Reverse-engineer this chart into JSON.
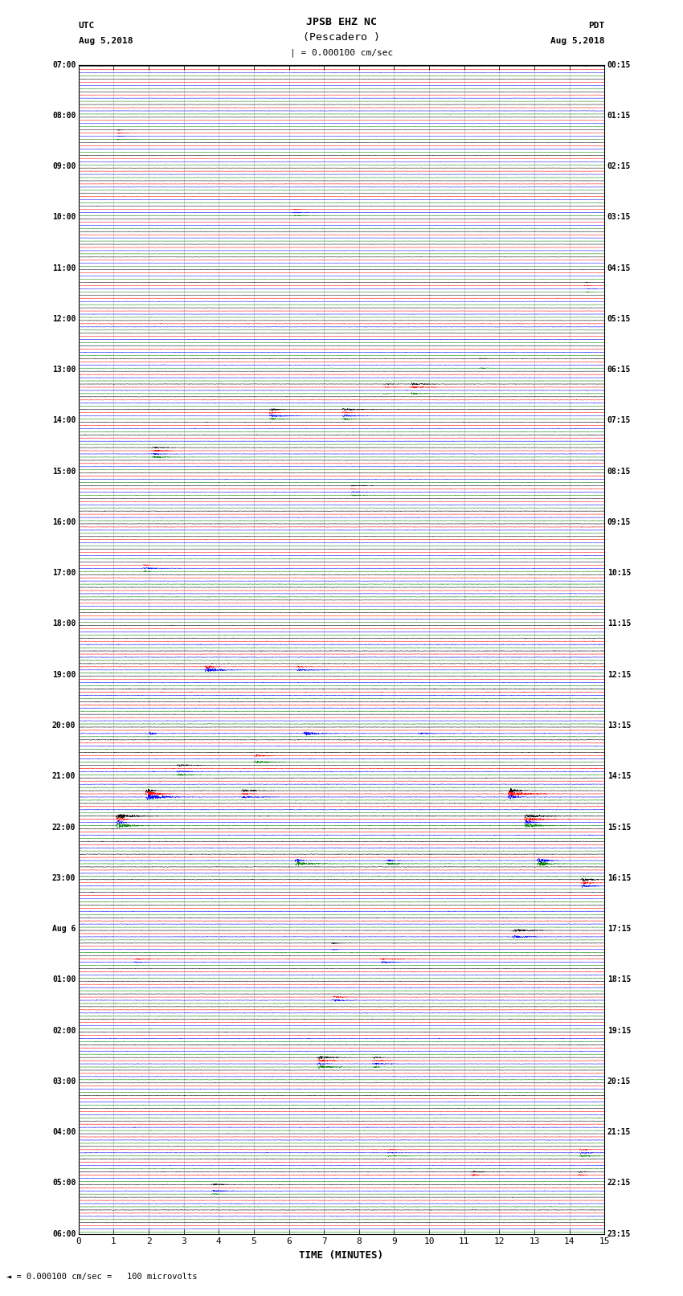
{
  "title_line1": "JPSB EHZ NC",
  "title_line2": "(Pescadero )",
  "title_line3": "| = 0.000100 cm/sec",
  "label_utc": "UTC",
  "label_utc_date": "Aug 5,2018",
  "label_pdt": "PDT",
  "label_pdt_date": "Aug 5,2018",
  "xlabel": "TIME (MINUTES)",
  "scale_text": "= 0.000100 cm/sec =   100 microvolts",
  "left_times": [
    "07:00",
    "",
    "",
    "",
    "08:00",
    "",
    "",
    "",
    "09:00",
    "",
    "",
    "",
    "10:00",
    "",
    "",
    "",
    "11:00",
    "",
    "",
    "",
    "12:00",
    "",
    "",
    "",
    "13:00",
    "",
    "",
    "",
    "14:00",
    "",
    "",
    "",
    "15:00",
    "",
    "",
    "",
    "16:00",
    "",
    "",
    "",
    "17:00",
    "",
    "",
    "",
    "18:00",
    "",
    "",
    "",
    "19:00",
    "",
    "",
    "",
    "20:00",
    "",
    "",
    "",
    "21:00",
    "",
    "",
    "",
    "22:00",
    "",
    "",
    "",
    "23:00",
    "",
    "",
    "",
    "Aug 6",
    "",
    "",
    "",
    "01:00",
    "",
    "",
    "",
    "02:00",
    "",
    "",
    "",
    "03:00",
    "",
    "",
    "",
    "04:00",
    "",
    "",
    "",
    "05:00",
    "",
    "",
    "",
    "06:00",
    "",
    "",
    ""
  ],
  "right_times": [
    "00:15",
    "",
    "",
    "",
    "01:15",
    "",
    "",
    "",
    "02:15",
    "",
    "",
    "",
    "03:15",
    "",
    "",
    "",
    "04:15",
    "",
    "",
    "",
    "05:15",
    "",
    "",
    "",
    "06:15",
    "",
    "",
    "",
    "07:15",
    "",
    "",
    "",
    "08:15",
    "",
    "",
    "",
    "09:15",
    "",
    "",
    "",
    "10:15",
    "",
    "",
    "",
    "11:15",
    "",
    "",
    "",
    "12:15",
    "",
    "",
    "",
    "13:15",
    "",
    "",
    "",
    "14:15",
    "",
    "",
    "",
    "15:15",
    "",
    "",
    "",
    "16:15",
    "",
    "",
    "",
    "17:15",
    "",
    "",
    "",
    "18:15",
    "",
    "",
    "",
    "19:15",
    "",
    "",
    "",
    "20:15",
    "",
    "",
    "",
    "21:15",
    "",
    "",
    "",
    "22:15",
    "",
    "",
    "",
    "23:15",
    "",
    "",
    ""
  ],
  "trace_colors": [
    "black",
    "red",
    "blue",
    "green"
  ],
  "n_groups": 92,
  "x_min": 0,
  "x_max": 15,
  "background_color": "white",
  "trace_linewidth": 0.35,
  "dpi": 100,
  "figwidth": 8.5,
  "figheight": 16.13
}
